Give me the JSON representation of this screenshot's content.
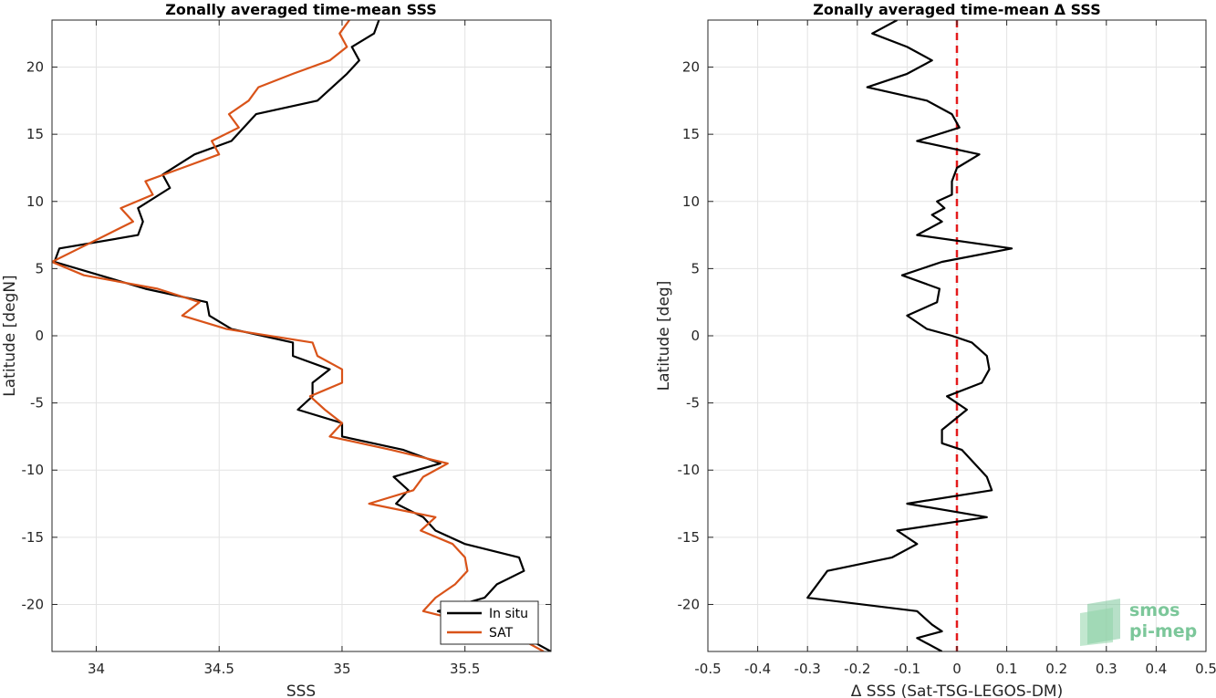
{
  "chart_data": [
    {
      "type": "line",
      "title": "Zonally averaged time-mean SSS",
      "xlabel": "SSS",
      "ylabel": "Latitude [degN]",
      "xlim": [
        33.82,
        35.85
      ],
      "ylim": [
        -23.5,
        23.5
      ],
      "xticks": [
        34,
        34.5,
        35,
        35.5
      ],
      "xtick_labels": [
        "34",
        "34.5",
        "35",
        "35.5"
      ],
      "yticks": [
        20,
        15,
        10,
        5,
        0,
        -5,
        -10,
        -15,
        -20
      ],
      "ytick_labels": [
        "20",
        "15",
        "10",
        "5",
        "0",
        "-5",
        "-10",
        "-15",
        "-20"
      ],
      "grid": true,
      "legend": {
        "placement": "bottom-right",
        "entries": [
          "In situ",
          "SAT"
        ]
      },
      "series": [
        {
          "name": "In situ",
          "color": "#000000",
          "points": [
            [
              35.15,
              23.5
            ],
            [
              35.13,
              22.5
            ],
            [
              35.04,
              21.5
            ],
            [
              35.07,
              20.5
            ],
            [
              35.02,
              19.5
            ],
            [
              34.9,
              17.5
            ],
            [
              34.65,
              16.5
            ],
            [
              34.55,
              14.5
            ],
            [
              34.4,
              13.5
            ],
            [
              34.27,
              12
            ],
            [
              34.3,
              11
            ],
            [
              34.17,
              9.5
            ],
            [
              34.19,
              8.5
            ],
            [
              34.17,
              7.5
            ],
            [
              33.85,
              6.5
            ],
            [
              33.83,
              5.5
            ],
            [
              34.2,
              3.5
            ],
            [
              34.45,
              2.5
            ],
            [
              34.46,
              1.5
            ],
            [
              34.55,
              0.5
            ],
            [
              34.8,
              -0.5
            ],
            [
              34.8,
              -1.5
            ],
            [
              34.95,
              -2.5
            ],
            [
              34.88,
              -3.5
            ],
            [
              34.88,
              -4.5
            ],
            [
              34.82,
              -5.5
            ],
            [
              35,
              -6.5
            ],
            [
              35,
              -7.5
            ],
            [
              35.25,
              -8.5
            ],
            [
              35.4,
              -9.5
            ],
            [
              35.21,
              -10.5
            ],
            [
              35.27,
              -11.5
            ],
            [
              35.22,
              -12.5
            ],
            [
              35.33,
              -13.5
            ],
            [
              35.38,
              -14.5
            ],
            [
              35.5,
              -15.5
            ],
            [
              35.72,
              -16.5
            ],
            [
              35.74,
              -17.5
            ],
            [
              35.63,
              -18.5
            ],
            [
              35.58,
              -19.5
            ],
            [
              35.39,
              -20.5
            ],
            [
              35.55,
              -21.5
            ],
            [
              35.75,
              -22.5
            ],
            [
              35.85,
              -23.5
            ]
          ]
        },
        {
          "name": "SAT",
          "color": "#d95319",
          "points": [
            [
              35.03,
              23.5
            ],
            [
              34.99,
              22.5
            ],
            [
              35.02,
              21.5
            ],
            [
              34.95,
              20.5
            ],
            [
              34.8,
              19.5
            ],
            [
              34.66,
              18.5
            ],
            [
              34.62,
              17.5
            ],
            [
              34.54,
              16.5
            ],
            [
              34.58,
              15.5
            ],
            [
              34.47,
              14.5
            ],
            [
              34.5,
              13.5
            ],
            [
              34.35,
              12.5
            ],
            [
              34.2,
              11.5
            ],
            [
              34.23,
              10.5
            ],
            [
              34.1,
              9.5
            ],
            [
              34.15,
              8.5
            ],
            [
              34.04,
              7.5
            ],
            [
              33.93,
              6.5
            ],
            [
              33.82,
              5.5
            ],
            [
              33.95,
              4.5
            ],
            [
              34.25,
              3.5
            ],
            [
              34.42,
              2.5
            ],
            [
              34.35,
              1.5
            ],
            [
              34.53,
              0.5
            ],
            [
              34.88,
              -0.5
            ],
            [
              34.9,
              -1.5
            ],
            [
              35.0,
              -2.5
            ],
            [
              35.0,
              -3.5
            ],
            [
              34.87,
              -4.5
            ],
            [
              34.93,
              -5.5
            ],
            [
              35.0,
              -6.5
            ],
            [
              34.95,
              -7.5
            ],
            [
              35.2,
              -8.5
            ],
            [
              35.43,
              -9.5
            ],
            [
              35.33,
              -10.5
            ],
            [
              35.29,
              -11.5
            ],
            [
              35.11,
              -12.5
            ],
            [
              35.38,
              -13.5
            ],
            [
              35.32,
              -14.5
            ],
            [
              35.45,
              -15.5
            ],
            [
              35.5,
              -16.5
            ],
            [
              35.51,
              -17.5
            ],
            [
              35.46,
              -18.5
            ],
            [
              35.38,
              -19.5
            ],
            [
              35.33,
              -20.5
            ],
            [
              35.55,
              -21.5
            ],
            [
              35.72,
              -22.5
            ],
            [
              35.82,
              -23.5
            ]
          ]
        }
      ]
    },
    {
      "type": "line",
      "title": "Zonally averaged time-mean Δ SSS",
      "xlabel": "Δ SSS (Sat-TSG-LEGOS-DM)",
      "ylabel": "Latitude [deg]",
      "xlim": [
        -0.5,
        0.5
      ],
      "ylim": [
        -23.5,
        23.5
      ],
      "xticks": [
        -0.5,
        -0.4,
        -0.3,
        -0.2,
        -0.1,
        0,
        0.1,
        0.2,
        0.3,
        0.4,
        0.5
      ],
      "xtick_labels": [
        "-0.5",
        "-0.4",
        "-0.3",
        "-0.2",
        "-0.1",
        "0",
        "0.1",
        "0.2",
        "0.3",
        "0.4",
        "0.5"
      ],
      "yticks": [
        20,
        15,
        10,
        5,
        0,
        -5,
        -10,
        -15,
        -20
      ],
      "ytick_labels": [
        "20",
        "15",
        "10",
        "5",
        "0",
        "-5",
        "-10",
        "-15",
        "-20"
      ],
      "grid": true,
      "reference_line": {
        "x": 0,
        "color": "#e41a1c",
        "style": "dashed"
      },
      "series": [
        {
          "color": "#000000",
          "points": [
            [
              -0.12,
              23.5
            ],
            [
              -0.17,
              22.5
            ],
            [
              -0.1,
              21.5
            ],
            [
              -0.05,
              20.5
            ],
            [
              -0.1,
              19.5
            ],
            [
              -0.18,
              18.5
            ],
            [
              -0.06,
              17.5
            ],
            [
              -0.01,
              16.5
            ],
            [
              0.005,
              15.5
            ],
            [
              -0.08,
              14.5
            ],
            [
              0.045,
              13.5
            ],
            [
              0.0,
              12.5
            ],
            [
              -0.01,
              11.5
            ],
            [
              -0.01,
              10.5
            ],
            [
              -0.04,
              10
            ],
            [
              -0.025,
              9.5
            ],
            [
              -0.05,
              9
            ],
            [
              -0.03,
              8.5
            ],
            [
              -0.08,
              7.5
            ],
            [
              0.11,
              6.5
            ],
            [
              -0.03,
              5.5
            ],
            [
              -0.11,
              4.5
            ],
            [
              -0.035,
              3.5
            ],
            [
              -0.04,
              2.5
            ],
            [
              -0.1,
              1.5
            ],
            [
              -0.06,
              0.5
            ],
            [
              -0.01,
              0
            ],
            [
              0.03,
              -0.5
            ],
            [
              0.06,
              -1.5
            ],
            [
              0.065,
              -2.5
            ],
            [
              0.05,
              -3.5
            ],
            [
              -0.02,
              -4.5
            ],
            [
              0.02,
              -5.5
            ],
            [
              -0.03,
              -7
            ],
            [
              -0.03,
              -8
            ],
            [
              0.01,
              -8.5
            ],
            [
              0.06,
              -10.5
            ],
            [
              0.07,
              -11.5
            ],
            [
              -0.1,
              -12.5
            ],
            [
              0.06,
              -13.5
            ],
            [
              -0.12,
              -14.5
            ],
            [
              -0.08,
              -15.5
            ],
            [
              -0.13,
              -16.5
            ],
            [
              -0.26,
              -17.5
            ],
            [
              -0.29,
              -19
            ],
            [
              -0.3,
              -19.5
            ],
            [
              -0.08,
              -20.5
            ],
            [
              -0.05,
              -21.5
            ],
            [
              -0.03,
              -22
            ],
            [
              -0.08,
              -22.5
            ],
            [
              -0.03,
              -23.5
            ]
          ]
        }
      ]
    }
  ],
  "logo": {
    "line1": "smos",
    "line2": "pi-mep"
  }
}
